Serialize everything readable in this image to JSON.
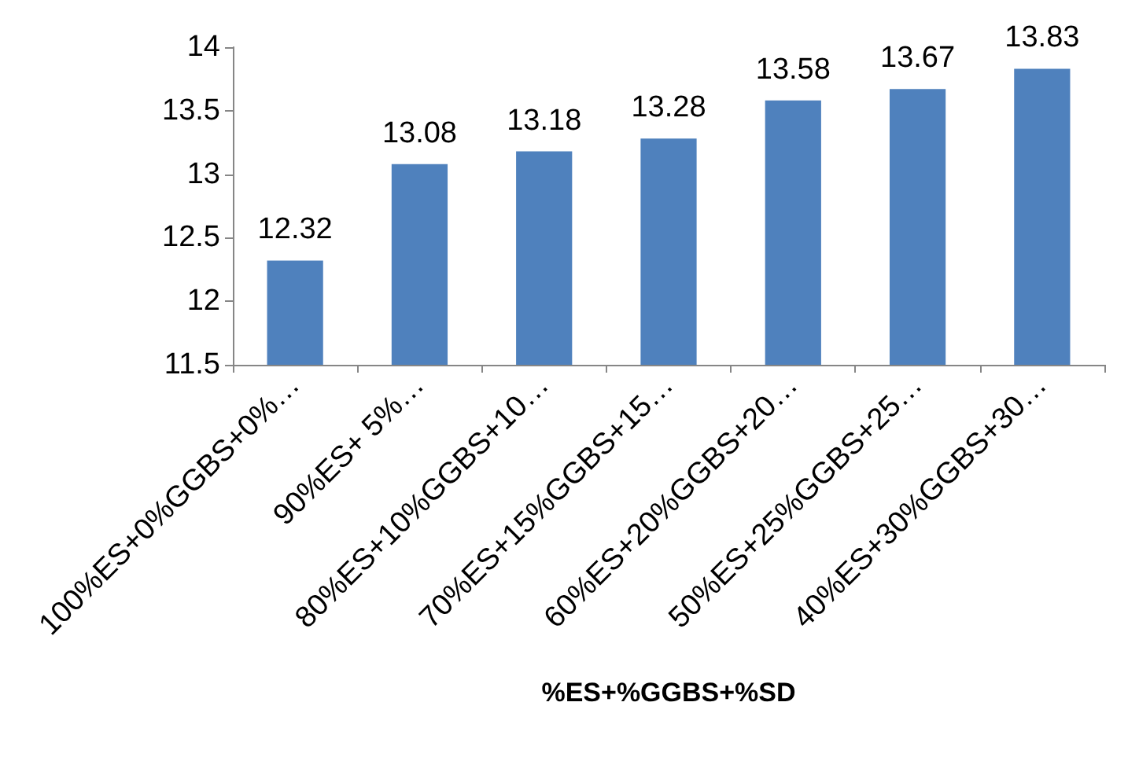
{
  "chart_data": {
    "type": "bar",
    "xlabel": "%ES+%GGBS+%SD",
    "categories": [
      "100%ES+0%GGBS+0%…",
      "90%ES+ 5%…",
      "80%ES+10%GGBS+10…",
      "70%ES+15%GGBS+15…",
      "60%ES+20%GGBS+20…",
      "50%ES+25%GGBS+25…",
      "40%ES+30%GGBS+30…"
    ],
    "values": [
      12.32,
      13.08,
      13.18,
      13.28,
      13.58,
      13.67,
      13.83
    ],
    "color": "#4f81bd",
    "ylim": [
      11.5,
      14
    ],
    "yticks": [
      11.5,
      12,
      12.5,
      13,
      13.5,
      14
    ],
    "grid": false,
    "data_labels": true
  }
}
